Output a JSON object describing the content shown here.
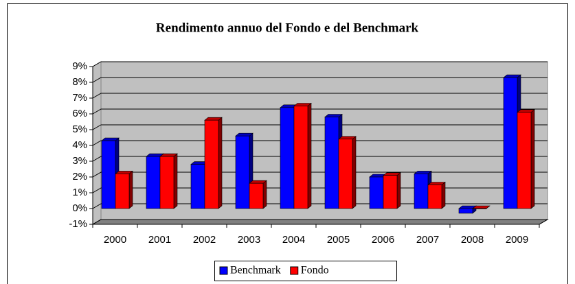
{
  "chart_data": {
    "type": "bar3d",
    "title": "Rendimento annuo del Fondo e del Benchmark",
    "categories": [
      "2000",
      "2001",
      "2002",
      "2003",
      "2004",
      "2005",
      "2006",
      "2007",
      "2008",
      "2009"
    ],
    "series": [
      {
        "name": "Benchmark",
        "color": "#0000ff",
        "values": [
          4.3,
          3.3,
          2.8,
          4.6,
          6.4,
          5.8,
          2.0,
          2.2,
          -0.3,
          8.3
        ]
      },
      {
        "name": "Fondo",
        "color": "#ff0000",
        "values": [
          2.2,
          3.3,
          5.6,
          1.6,
          6.5,
          4.4,
          2.1,
          1.5,
          0,
          6.1
        ]
      }
    ],
    "ylim": [
      -1,
      9
    ],
    "yticks": [
      {
        "value": -1,
        "label": "-1%"
      },
      {
        "value": 0,
        "label": "0%"
      },
      {
        "value": 1,
        "label": "1%"
      },
      {
        "value": 2,
        "label": "2%"
      },
      {
        "value": 3,
        "label": "3%"
      },
      {
        "value": 4,
        "label": "4%"
      },
      {
        "value": 5,
        "label": "5%"
      },
      {
        "value": 6,
        "label": "6%"
      },
      {
        "value": 7,
        "label": "7%"
      },
      {
        "value": 8,
        "label": "8%"
      },
      {
        "value": 9,
        "label": "9%"
      }
    ],
    "grid": true,
    "legend": "bottom"
  }
}
